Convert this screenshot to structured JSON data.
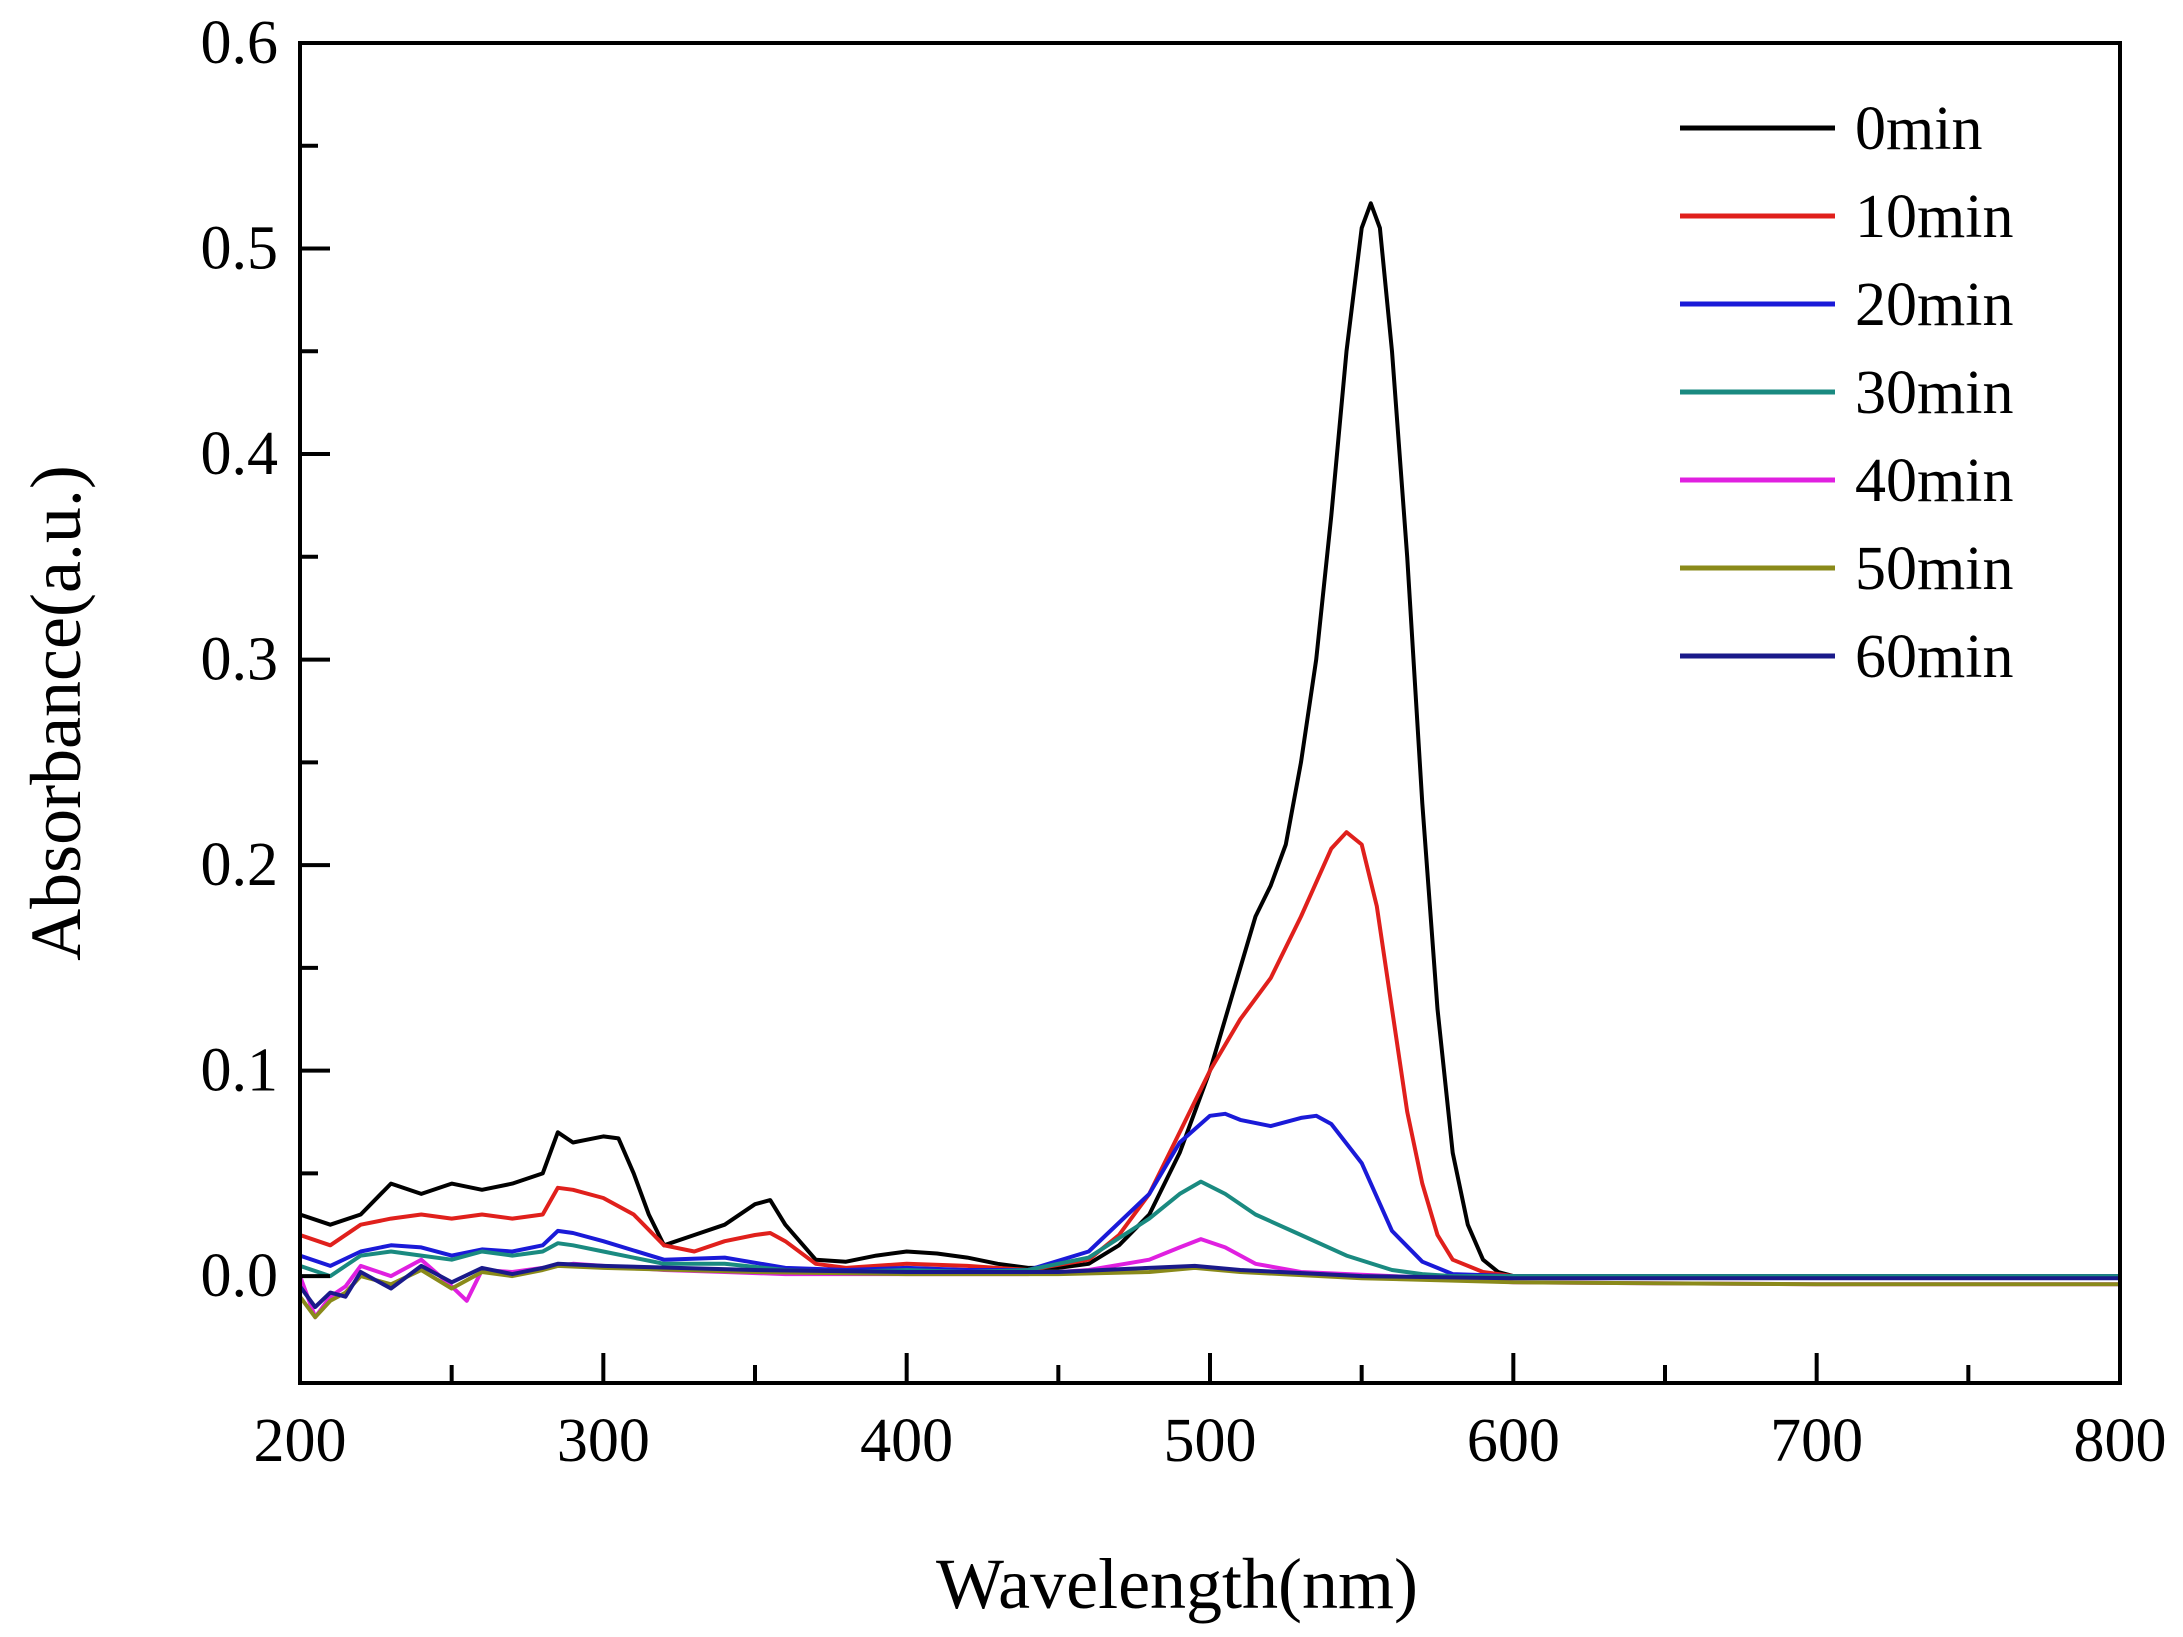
{
  "chart_data": {
    "type": "line",
    "title": "",
    "xlabel": "Wavelength(nm)",
    "ylabel": "Absorbance(a.u.)",
    "xlim": [
      200,
      800
    ],
    "ylim": [
      -0.052,
      0.6
    ],
    "xticks": [
      200,
      300,
      400,
      500,
      600,
      700,
      800
    ],
    "xtick_labels": [
      "200",
      "300",
      "400",
      "500",
      "600",
      "700",
      "800"
    ],
    "yticks": [
      0.0,
      0.1,
      0.2,
      0.3,
      0.4,
      0.5,
      0.6
    ],
    "ytick_labels": [
      "0.0",
      "0.1",
      "0.2",
      "0.3",
      "0.4",
      "0.5",
      "0.6"
    ],
    "grid": false,
    "legend_position": "top-right",
    "series": [
      {
        "name": "0min",
        "color": "#000000",
        "x": [
          200,
          210,
          220,
          230,
          240,
          250,
          260,
          270,
          280,
          285,
          290,
          300,
          305,
          310,
          315,
          320,
          330,
          340,
          350,
          355,
          360,
          370,
          380,
          390,
          400,
          410,
          420,
          430,
          440,
          450,
          460,
          470,
          480,
          490,
          500,
          510,
          515,
          520,
          525,
          530,
          535,
          540,
          545,
          550,
          553,
          556,
          560,
          565,
          570,
          575,
          580,
          585,
          590,
          595,
          600,
          700,
          800
        ],
        "y": [
          0.03,
          0.025,
          0.03,
          0.045,
          0.04,
          0.045,
          0.042,
          0.045,
          0.05,
          0.07,
          0.065,
          0.068,
          0.067,
          0.05,
          0.03,
          0.015,
          0.02,
          0.025,
          0.035,
          0.037,
          0.025,
          0.008,
          0.007,
          0.01,
          0.012,
          0.011,
          0.009,
          0.006,
          0.004,
          0.004,
          0.006,
          0.015,
          0.03,
          0.06,
          0.1,
          0.15,
          0.175,
          0.19,
          0.21,
          0.25,
          0.3,
          0.37,
          0.45,
          0.51,
          0.522,
          0.51,
          0.45,
          0.35,
          0.23,
          0.13,
          0.06,
          0.025,
          0.008,
          0.002,
          0.0,
          0.0,
          0.0
        ]
      },
      {
        "name": "10min",
        "color": "#e0201c",
        "x": [
          200,
          210,
          220,
          230,
          240,
          250,
          260,
          270,
          280,
          285,
          290,
          300,
          310,
          320,
          330,
          340,
          350,
          355,
          360,
          370,
          380,
          400,
          420,
          440,
          460,
          470,
          480,
          490,
          500,
          510,
          520,
          530,
          540,
          545,
          550,
          555,
          560,
          565,
          570,
          575,
          580,
          590,
          600,
          700,
          800
        ],
        "y": [
          0.02,
          0.015,
          0.025,
          0.028,
          0.03,
          0.028,
          0.03,
          0.028,
          0.03,
          0.043,
          0.042,
          0.038,
          0.03,
          0.015,
          0.012,
          0.017,
          0.02,
          0.021,
          0.017,
          0.006,
          0.004,
          0.006,
          0.005,
          0.003,
          0.008,
          0.02,
          0.04,
          0.07,
          0.1,
          0.125,
          0.145,
          0.175,
          0.208,
          0.216,
          0.21,
          0.18,
          0.13,
          0.08,
          0.045,
          0.02,
          0.008,
          0.002,
          0.0,
          0.0,
          0.0
        ]
      },
      {
        "name": "20min",
        "color": "#1a1ad8",
        "x": [
          200,
          210,
          220,
          230,
          240,
          250,
          260,
          270,
          280,
          285,
          290,
          300,
          320,
          340,
          360,
          380,
          400,
          420,
          440,
          460,
          480,
          490,
          500,
          505,
          510,
          520,
          530,
          535,
          540,
          550,
          560,
          570,
          580,
          600,
          700,
          800
        ],
        "y": [
          0.01,
          0.005,
          0.012,
          0.015,
          0.014,
          0.01,
          0.013,
          0.012,
          0.015,
          0.022,
          0.021,
          0.017,
          0.008,
          0.009,
          0.004,
          0.003,
          0.004,
          0.003,
          0.003,
          0.012,
          0.04,
          0.065,
          0.078,
          0.079,
          0.076,
          0.073,
          0.077,
          0.078,
          0.074,
          0.055,
          0.022,
          0.007,
          0.001,
          0.0,
          0.0,
          0.0
        ]
      },
      {
        "name": "30min",
        "color": "#1a8a80",
        "x": [
          200,
          210,
          220,
          230,
          240,
          250,
          260,
          270,
          280,
          285,
          290,
          300,
          320,
          340,
          360,
          380,
          400,
          420,
          440,
          460,
          480,
          490,
          497,
          505,
          515,
          530,
          545,
          560,
          570,
          580,
          600,
          700,
          800
        ],
        "y": [
          0.005,
          0.0,
          0.01,
          0.012,
          0.01,
          0.008,
          0.012,
          0.01,
          0.012,
          0.016,
          0.015,
          0.012,
          0.006,
          0.006,
          0.003,
          0.002,
          0.003,
          0.002,
          0.003,
          0.009,
          0.028,
          0.04,
          0.046,
          0.04,
          0.03,
          0.02,
          0.01,
          0.003,
          0.001,
          0.0,
          0.0,
          0.0,
          0.0
        ]
      },
      {
        "name": "40min",
        "color": "#e020e0",
        "x": [
          200,
          205,
          210,
          215,
          220,
          230,
          240,
          250,
          255,
          260,
          270,
          280,
          290,
          300,
          320,
          340,
          360,
          400,
          440,
          460,
          480,
          490,
          497,
          505,
          515,
          530,
          560,
          600,
          700,
          800
        ],
        "y": [
          0.0,
          -0.02,
          -0.01,
          -0.005,
          0.005,
          0.0,
          0.008,
          -0.005,
          -0.012,
          0.003,
          0.002,
          0.004,
          0.006,
          0.005,
          0.003,
          0.002,
          0.001,
          0.001,
          0.001,
          0.003,
          0.008,
          0.014,
          0.018,
          0.014,
          0.006,
          0.002,
          0.0,
          -0.003,
          -0.004,
          -0.004
        ]
      },
      {
        "name": "50min",
        "color": "#8a8a1a",
        "x": [
          200,
          205,
          210,
          215,
          220,
          230,
          240,
          250,
          260,
          270,
          280,
          285,
          300,
          350,
          400,
          450,
          480,
          495,
          510,
          550,
          600,
          700,
          800
        ],
        "y": [
          -0.01,
          -0.02,
          -0.012,
          -0.008,
          0.0,
          -0.004,
          0.003,
          -0.006,
          0.002,
          0.0,
          0.003,
          0.005,
          0.004,
          0.002,
          0.001,
          0.001,
          0.002,
          0.004,
          0.002,
          -0.001,
          -0.003,
          -0.004,
          -0.004
        ]
      },
      {
        "name": "60min",
        "color": "#1a1a8a",
        "x": [
          200,
          205,
          210,
          215,
          220,
          230,
          240,
          250,
          260,
          270,
          280,
          285,
          300,
          350,
          400,
          450,
          480,
          495,
          510,
          550,
          600,
          700,
          800
        ],
        "y": [
          -0.005,
          -0.015,
          -0.008,
          -0.01,
          0.002,
          -0.006,
          0.005,
          -0.003,
          0.004,
          0.001,
          0.004,
          0.006,
          0.005,
          0.003,
          0.002,
          0.002,
          0.004,
          0.005,
          0.003,
          0.0,
          -0.001,
          -0.001,
          -0.001
        ]
      }
    ]
  }
}
